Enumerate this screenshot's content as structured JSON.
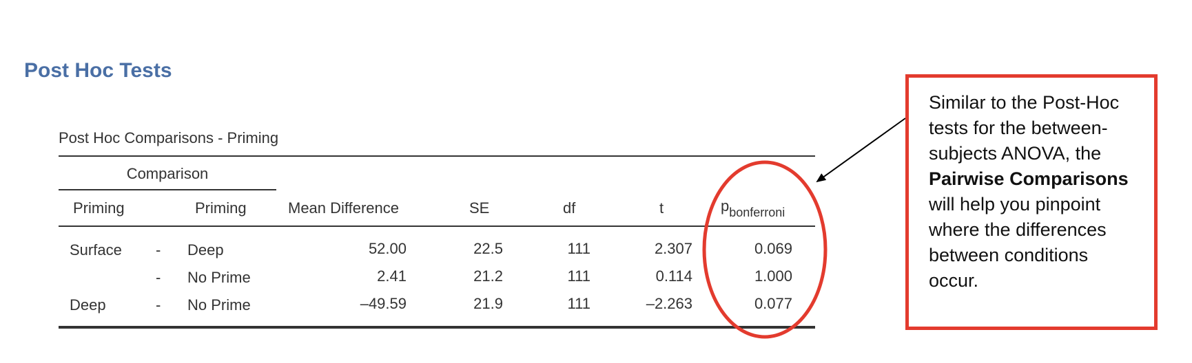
{
  "section_title": "Post Hoc Tests",
  "table": {
    "title": "Post Hoc Comparisons - Priming",
    "group_header": "Comparison",
    "columns": {
      "priming1": "Priming",
      "priming2": "Priming",
      "mean_diff": "Mean Difference",
      "se": "SE",
      "df": "df",
      "t": "t",
      "p_main": "p",
      "p_sub": "bonferroni"
    },
    "rows": [
      {
        "g1": "Surface",
        "dash": "-",
        "g2": "Deep",
        "mean_diff": "52.00",
        "se": "22.5",
        "df": "111",
        "t": "2.307",
        "p": "0.069"
      },
      {
        "g1": "",
        "dash": "-",
        "g2": "No Prime",
        "mean_diff": "2.41",
        "se": "21.2",
        "df": "111",
        "t": "0.114",
        "p": "1.000"
      },
      {
        "g1": "Deep",
        "dash": "-",
        "g2": "No Prime",
        "mean_diff": "–49.59",
        "se": "21.9",
        "df": "111",
        "t": "–2.263",
        "p": "0.077"
      }
    ]
  },
  "callout": {
    "text_before": "Similar to the Post-Hoc tests for the between-subjects ANOVA, the ",
    "text_bold": "Pairwise Comparisons",
    "text_after": " will help you pinpoint where the differences between conditions occur."
  },
  "colors": {
    "title_blue": "#4a6fa5",
    "annotation_red": "#e33b2e"
  }
}
